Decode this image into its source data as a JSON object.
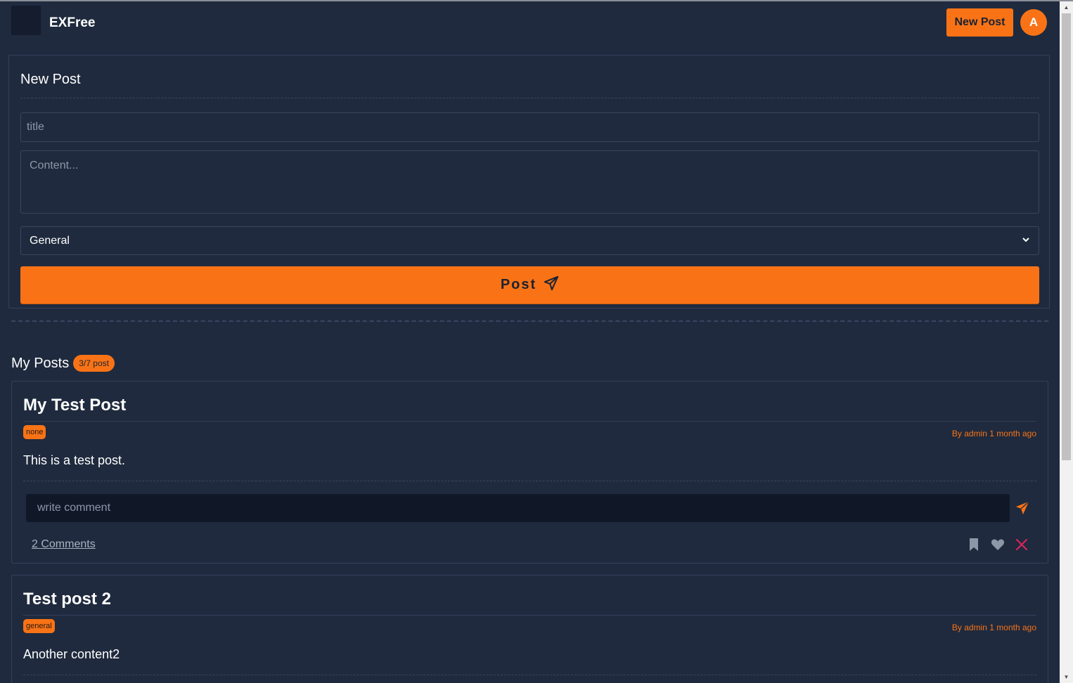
{
  "header": {
    "brand": "EXFree",
    "new_post_label": "New Post",
    "avatar_initial": "A"
  },
  "form": {
    "title": "New Post",
    "title_placeholder": "title",
    "content_placeholder": "Content...",
    "category_selected": "General",
    "submit_label": "Post"
  },
  "my_posts": {
    "title": "My Posts",
    "count_badge": "3/7 post",
    "posts": [
      {
        "title": "My Test Post",
        "tag": "none",
        "byline": "By admin 1 month ago",
        "body": "This is a test post.",
        "comment_placeholder": "write comment",
        "comments_label": "2 Comments"
      },
      {
        "title": "Test post 2",
        "tag": "general",
        "byline": "By admin 1 month ago",
        "body": "Another content2"
      }
    ]
  },
  "colors": {
    "background": "#1f2a3e",
    "accent": "#f97316",
    "danger": "#e0245e",
    "muted_icon": "#8d97a8"
  },
  "icons": [
    "send-icon",
    "bookmark-icon",
    "heart-icon",
    "close-icon",
    "chevron-down-icon"
  ]
}
